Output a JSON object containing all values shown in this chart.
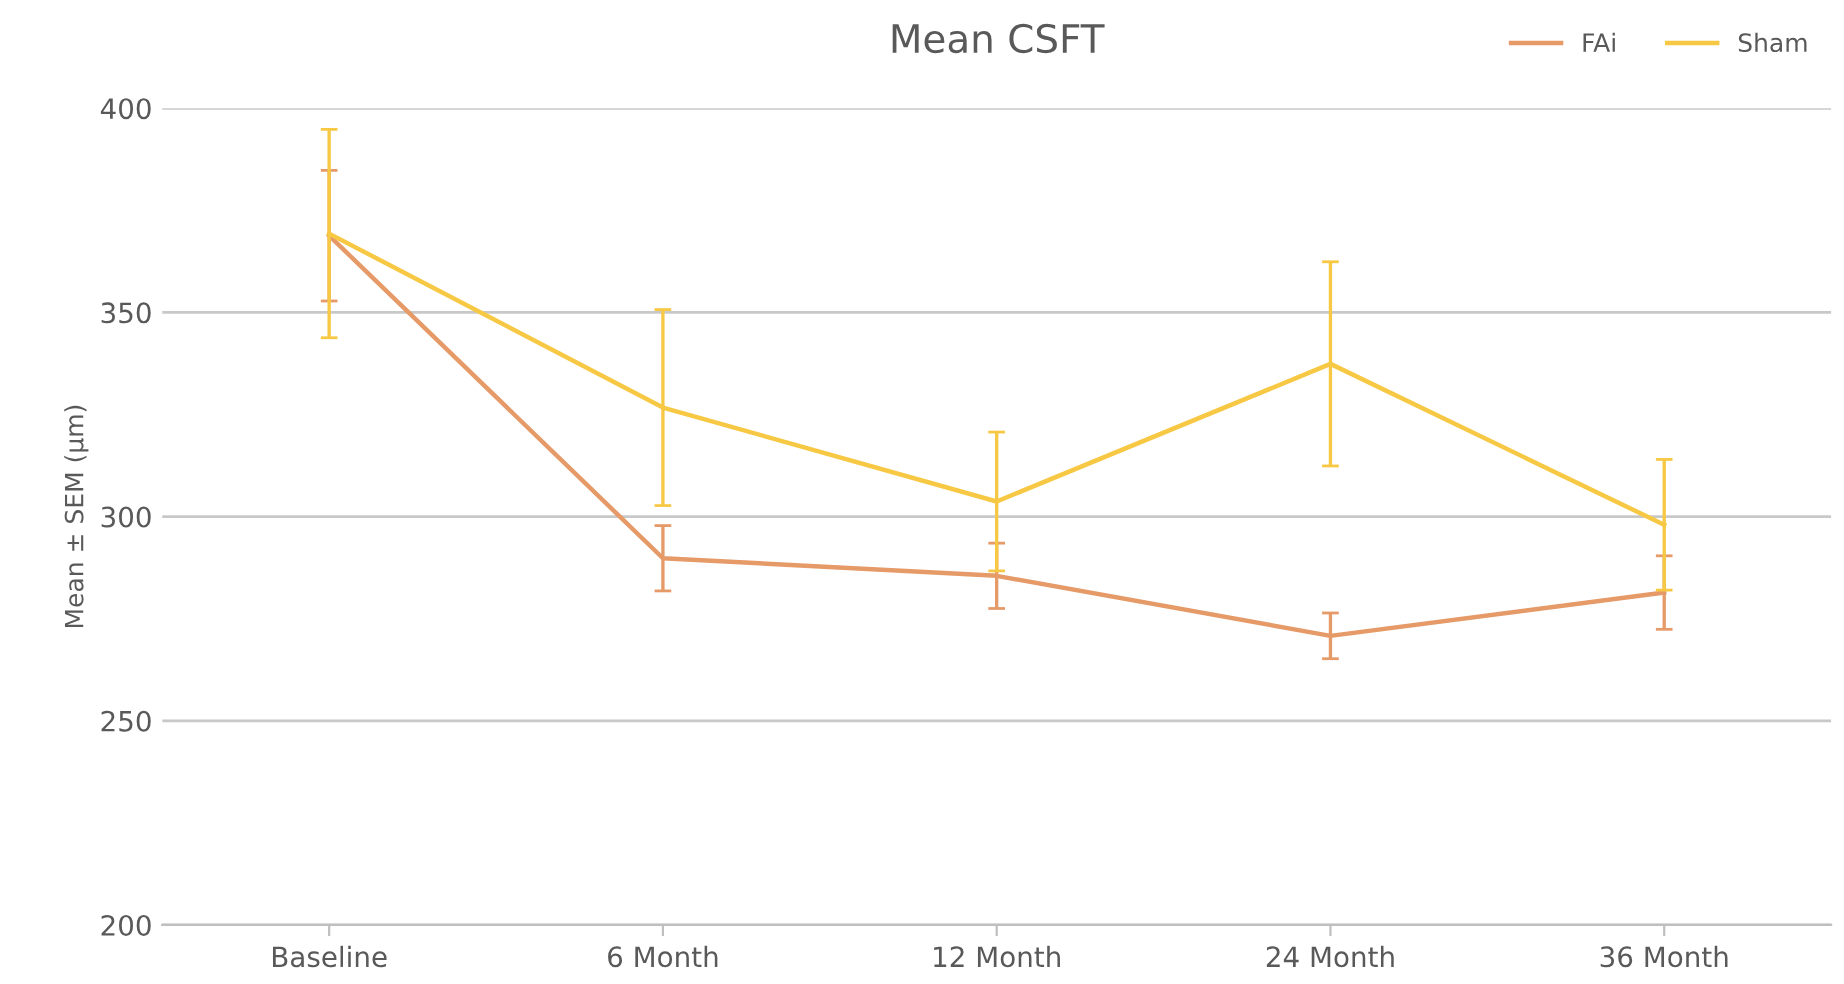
{
  "chart_data": {
    "type": "line",
    "title": "Mean CSFT",
    "ylabel": "Mean ± SEM (µm)",
    "categories": [
      "Baseline",
      "6 Month",
      "12 Month",
      "24 Month",
      "36 Month"
    ],
    "series": [
      {
        "name": "FAi",
        "color": "#e59a68",
        "values": [
          368.8,
          289.8,
          285.5,
          270.8,
          281.4
        ],
        "errors": [
          16,
          8,
          8,
          5.6,
          9
        ]
      },
      {
        "name": "Sham",
        "color": "#f7c844",
        "values": [
          369.3,
          326.7,
          303.7,
          337.4,
          298
        ],
        "errors": [
          25.5,
          24,
          17,
          25,
          16
        ]
      }
    ],
    "ylim": [
      200,
      400
    ],
    "yticks": [
      200,
      250,
      300,
      350,
      400
    ],
    "grid": "y",
    "legend": "top right",
    "marker": "none",
    "line_style": "solid"
  }
}
